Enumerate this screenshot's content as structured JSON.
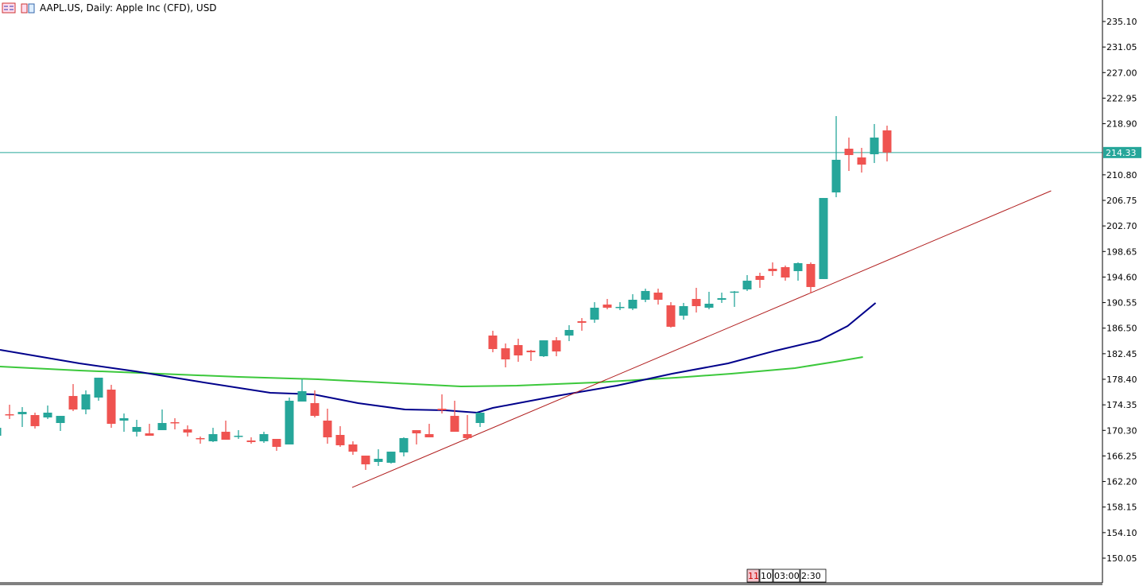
{
  "header": {
    "title": "AAPL.US, Daily:  Apple Inc (CFD), USD",
    "icons": [
      "list-icon",
      "chart-template-icon"
    ]
  },
  "colors": {
    "bull": "#26a69a",
    "bear": "#ef5350",
    "ma_fast": "#00008b",
    "ma_slow": "#3cc83c",
    "trendline": "#b01c1c",
    "price_line": "#26a69a"
  },
  "time_axis": {
    "labels": [
      "11",
      "10",
      "03:00",
      "2:30"
    ]
  },
  "chart_data": {
    "type": "candlestick",
    "title": "AAPL.US, Daily: Apple Inc (CFD), USD",
    "ylim": [
      149.5,
      238
    ],
    "yticks": [
      235.1,
      231.05,
      227.0,
      222.95,
      218.9,
      214.33,
      210.8,
      206.75,
      202.7,
      198.65,
      194.6,
      190.55,
      186.5,
      182.45,
      178.4,
      174.35,
      170.3,
      166.25,
      162.2,
      158.15,
      154.1,
      150.05
    ],
    "current_price": 214.33,
    "candles_ohlc": [
      [
        169.45,
        171.47,
        169.2,
        170.71
      ],
      [
        172.86,
        174.37,
        172.1,
        172.73
      ],
      [
        172.86,
        173.99,
        170.84,
        173.23
      ],
      [
        172.73,
        173.11,
        170.59,
        170.97
      ],
      [
        172.35,
        174.24,
        172.1,
        173.11
      ],
      [
        171.47,
        172.6,
        170.21,
        172.6
      ],
      [
        175.75,
        177.64,
        173.36,
        173.61
      ],
      [
        173.61,
        176.64,
        172.86,
        176.01
      ],
      [
        175.5,
        178.65,
        175.0,
        178.65
      ],
      [
        176.76,
        177.52,
        170.71,
        171.34
      ],
      [
        171.85,
        172.98,
        170.08,
        172.23
      ],
      [
        170.08,
        171.97,
        169.33,
        170.84
      ],
      [
        169.83,
        171.34,
        169.45,
        169.45
      ],
      [
        170.34,
        173.61,
        170.34,
        171.47
      ],
      [
        171.6,
        172.23,
        170.46,
        171.47
      ],
      [
        170.46,
        171.09,
        169.33,
        169.96
      ],
      [
        169.08,
        169.33,
        168.19,
        168.95
      ],
      [
        168.57,
        170.71,
        168.45,
        169.71
      ],
      [
        170.08,
        171.85,
        168.82,
        168.82
      ],
      [
        169.33,
        170.34,
        168.95,
        169.45
      ],
      [
        168.7,
        169.2,
        168.19,
        168.45
      ],
      [
        168.57,
        170.08,
        168.32,
        169.71
      ],
      [
        168.95,
        168.95,
        167.06,
        167.69
      ],
      [
        168.07,
        175.5,
        168.07,
        175.0
      ],
      [
        174.87,
        178.4,
        174.87,
        176.51
      ],
      [
        174.62,
        176.64,
        172.35,
        172.6
      ],
      [
        171.85,
        173.74,
        168.19,
        169.2
      ],
      [
        169.58,
        170.97,
        167.69,
        167.94
      ],
      [
        168.07,
        168.57,
        166.43,
        166.93
      ],
      [
        166.3,
        166.3,
        164.04,
        164.92
      ],
      [
        165.3,
        167.31,
        164.67,
        165.8
      ],
      [
        165.17,
        166.93,
        165.04,
        166.93
      ],
      [
        166.81,
        169.2,
        166.18,
        169.08
      ],
      [
        170.34,
        170.34,
        168.07,
        169.83
      ],
      [
        169.71,
        171.34,
        169.2,
        169.2
      ],
      [
        173.74,
        176.01,
        172.98,
        173.49
      ],
      [
        172.6,
        175.0,
        170.08,
        170.08
      ],
      [
        169.71,
        172.73,
        168.82,
        169.08
      ],
      [
        171.47,
        173.11,
        170.84,
        173.11
      ],
      [
        185.33,
        186.09,
        182.68,
        183.19
      ],
      [
        183.31,
        184.07,
        180.29,
        181.55
      ],
      [
        183.82,
        184.83,
        181.17,
        182.18
      ],
      [
        182.94,
        183.06,
        181.3,
        182.68
      ],
      [
        182.05,
        184.57,
        181.93,
        184.57
      ],
      [
        184.57,
        185.08,
        182.05,
        182.81
      ],
      [
        185.33,
        186.97,
        184.45,
        186.21
      ],
      [
        187.6,
        188.1,
        186.09,
        187.35
      ],
      [
        187.85,
        190.62,
        187.35,
        189.74
      ],
      [
        190.24,
        191.13,
        189.49,
        189.74
      ],
      [
        189.74,
        190.62,
        189.36,
        189.87
      ],
      [
        189.61,
        191.88,
        189.36,
        191.0
      ],
      [
        191.0,
        192.76,
        190.62,
        192.39
      ],
      [
        192.13,
        192.76,
        190.24,
        191.0
      ],
      [
        190.12,
        190.62,
        186.59,
        186.72
      ],
      [
        188.48,
        190.5,
        187.85,
        189.99
      ],
      [
        191.13,
        192.89,
        188.98,
        189.99
      ],
      [
        189.74,
        192.26,
        189.49,
        190.37
      ],
      [
        191.0,
        192.13,
        190.5,
        191.25
      ],
      [
        192.26,
        192.39,
        189.87,
        192.3
      ],
      [
        192.64,
        194.91,
        192.39,
        194.02
      ],
      [
        194.78,
        195.28,
        192.89,
        194.15
      ],
      [
        195.91,
        196.92,
        194.78,
        195.54
      ],
      [
        196.17,
        196.42,
        194.02,
        194.53
      ],
      [
        195.54,
        196.92,
        194.02,
        196.8
      ],
      [
        196.67,
        196.92,
        192.01,
        193.02
      ],
      [
        194.28,
        207.13,
        194.28,
        207.13
      ],
      [
        208.01,
        220.11,
        207.25,
        213.18
      ],
      [
        214.94,
        216.7,
        211.41,
        213.93
      ],
      [
        213.55,
        215.07,
        211.16,
        212.42
      ],
      [
        214.06,
        218.85,
        212.67,
        216.7
      ],
      [
        217.84,
        218.59,
        212.92,
        214.33
      ]
    ],
    "ma_fast": [
      [
        1.25,
        183.06
      ],
      [
        7.5,
        180.92
      ],
      [
        11.9,
        179.66
      ],
      [
        16.9,
        178.02
      ],
      [
        22.5,
        176.26
      ],
      [
        25.9,
        176.01
      ],
      [
        29.4,
        174.62
      ],
      [
        33.1,
        173.61
      ],
      [
        36.25,
        173.49
      ],
      [
        38.75,
        173.11
      ],
      [
        40,
        173.86
      ],
      [
        45,
        175.75
      ],
      [
        49.75,
        177.39
      ],
      [
        54.1,
        179.28
      ],
      [
        58.5,
        180.92
      ],
      [
        62.25,
        182.94
      ],
      [
        65.7,
        184.57
      ],
      [
        67.9,
        186.84
      ],
      [
        70.1,
        190.5
      ]
    ],
    "ma_slow": [
      [
        1.25,
        180.42
      ],
      [
        7.5,
        179.79
      ],
      [
        13.75,
        179.28
      ],
      [
        20,
        178.78
      ],
      [
        26.25,
        178.4
      ],
      [
        32.5,
        177.77
      ],
      [
        37.5,
        177.27
      ],
      [
        41.9,
        177.39
      ],
      [
        48.1,
        177.89
      ],
      [
        54.4,
        178.65
      ],
      [
        58.75,
        179.28
      ],
      [
        63.75,
        180.17
      ],
      [
        66.9,
        181.17
      ],
      [
        69.1,
        181.93
      ]
    ],
    "trendline": [
      [
        28.94,
        161.26
      ],
      [
        83.9,
        208.26
      ]
    ]
  }
}
